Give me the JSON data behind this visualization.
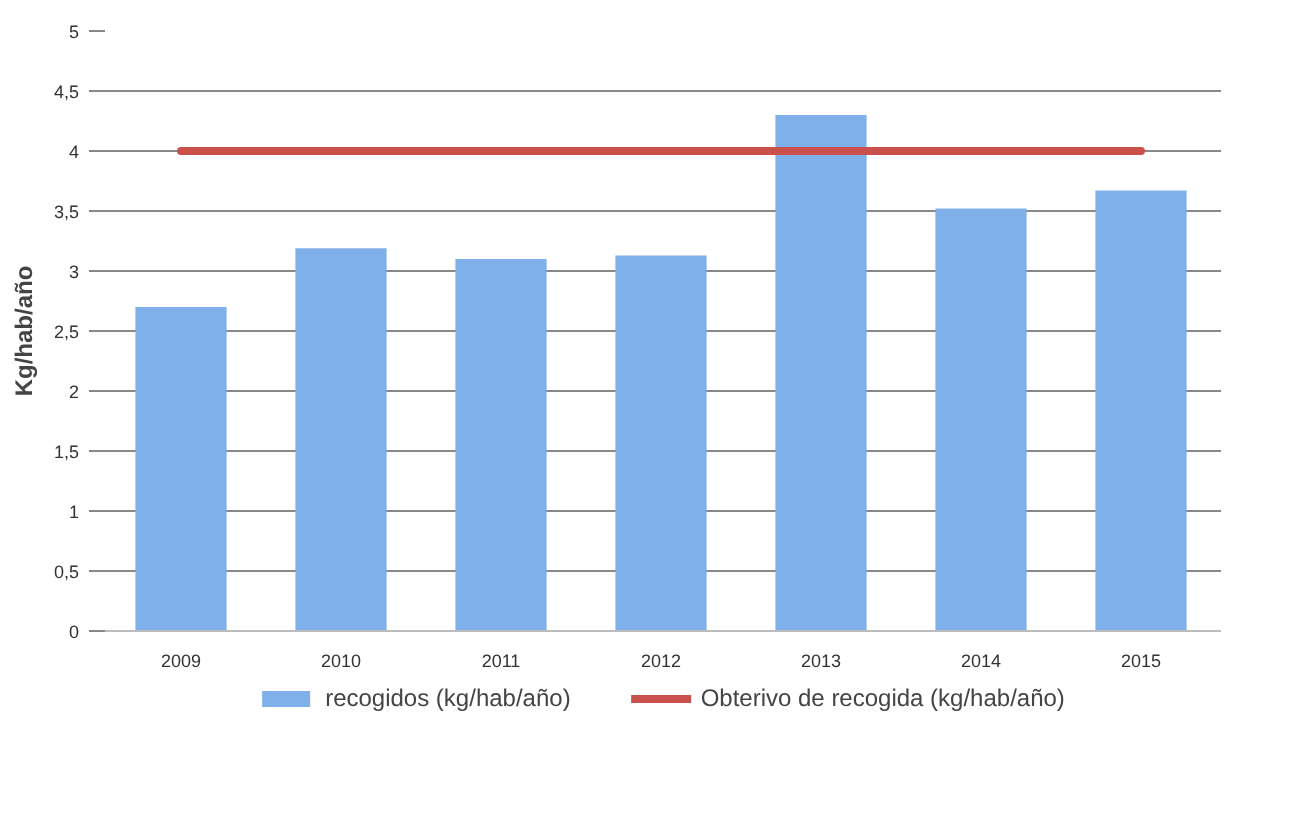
{
  "chart_data": {
    "type": "bar",
    "ylabel": "Kg/hab/año",
    "categories": [
      "2009",
      "2010",
      "2011",
      "2012",
      "2013",
      "2014",
      "2015"
    ],
    "series": [
      {
        "name": "recogidos (kg/hab/año)",
        "type": "bar",
        "color": "#7fb0ea",
        "values": [
          2.7,
          3.19,
          3.1,
          3.13,
          4.3,
          3.52,
          3.67
        ]
      },
      {
        "name": "Obterivo de recogida (kg/hab/año)",
        "type": "line",
        "color": "#c9504b",
        "values": [
          4,
          4,
          4,
          4,
          4,
          4,
          4
        ]
      }
    ],
    "ylim": [
      0,
      5
    ],
    "yticks": [
      0,
      {
        "value": 0.5,
        "label": "0,5"
      },
      1,
      {
        "value": 1.5,
        "label": "1,5"
      },
      2,
      {
        "value": 2.5,
        "label": "2,5"
      },
      3,
      {
        "value": 3.5,
        "label": "3,5"
      },
      4,
      {
        "value": 4.5,
        "label": "4,5"
      },
      5
    ],
    "grid": "y",
    "legend": "bottom"
  }
}
